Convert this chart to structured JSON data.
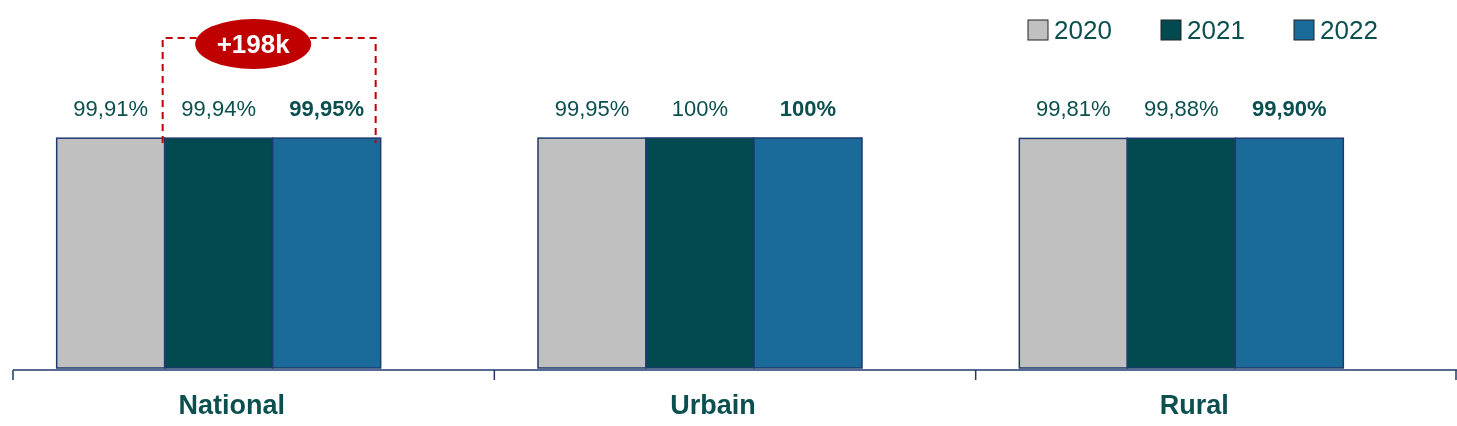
{
  "chart_data": {
    "type": "bar",
    "categories": [
      "National",
      "Urbain",
      "Rural"
    ],
    "series": [
      {
        "name": "2020",
        "color": "#c0c0c0",
        "values": [
          99.91,
          99.95,
          99.81
        ],
        "value_labels": [
          "99,91%",
          "99,95%",
          "99,81%"
        ]
      },
      {
        "name": "2021",
        "color": "#024a50",
        "values": [
          99.94,
          100,
          99.88
        ],
        "value_labels": [
          "99,94%",
          "100%",
          "99,88%"
        ]
      },
      {
        "name": "2022",
        "color": "#1a6a9a",
        "values": [
          99.95,
          100,
          99.9
        ],
        "value_labels": [
          "99,95%",
          "100%",
          "99,90%"
        ]
      }
    ],
    "ylim": [
      0,
      100
    ],
    "tick_labels": "x",
    "legend": "top right",
    "annotations": [
      "+198k"
    ]
  }
}
